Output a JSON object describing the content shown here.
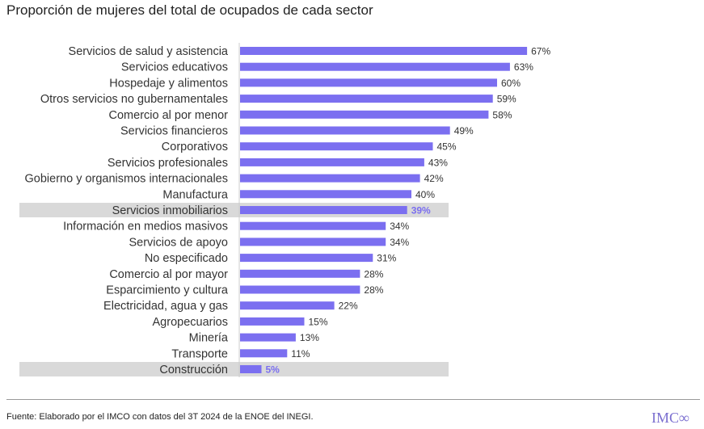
{
  "title": "Proporción de mujeres del total de ocupados de cada sector",
  "source": "Fuente: Elaborado por el IMCO con datos del 3T 2024 de la ENOE del INEGI.",
  "logo": "IMCO",
  "chart_data": {
    "type": "bar",
    "orientation": "horizontal",
    "title": "Proporción de mujeres del total de ocupados de cada sector",
    "categories": [
      "Servicios de salud y asistencia",
      "Servicios educativos",
      "Hospedaje y alimentos",
      "Otros servicios no gubernamentales",
      "Comercio al por menor",
      "Servicios financieros",
      "Corporativos",
      "Servicios profesionales",
      "Gobierno y organismos internacionales",
      "Manufactura",
      "Servicios inmobiliarios",
      "Información en medios masivos",
      "Servicios de apoyo",
      "No especificado",
      "Comercio al por mayor",
      "Esparcimiento y cultura",
      "Electricidad, agua y gas",
      "Agropecuarios",
      "Minería",
      "Transporte",
      "Construcción"
    ],
    "values": [
      67,
      63,
      60,
      59,
      58,
      49,
      45,
      43,
      42,
      40,
      39,
      34,
      34,
      31,
      28,
      28,
      22,
      15,
      13,
      11,
      5
    ],
    "labels": [
      "67%",
      "63%",
      "60%",
      "59%",
      "58%",
      "49%",
      "45%",
      "43%",
      "42%",
      "40%",
      "39%",
      "34%",
      "34%",
      "31%",
      "28%",
      "28%",
      "22%",
      "15%",
      "13%",
      "11%",
      "5%"
    ],
    "highlighted": [
      "Servicios inmobiliarios",
      "Construcción"
    ],
    "xlim": [
      0,
      100
    ],
    "grid": false,
    "colors": {
      "bar": "#7b6ff0",
      "highlight_band": "#d9d9d9",
      "highlight_label": "#7b6ff0",
      "label": "#333333"
    }
  }
}
